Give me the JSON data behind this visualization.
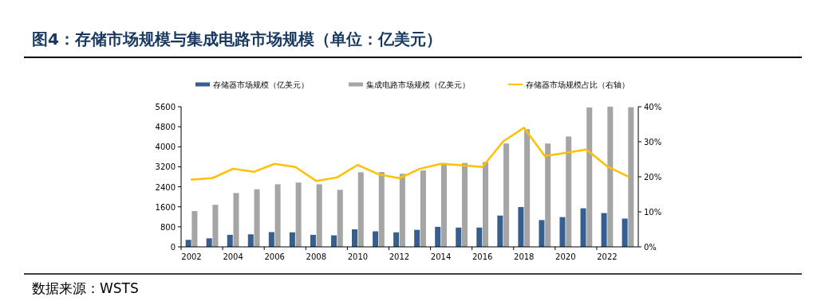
{
  "chart_data": {
    "type": "bar",
    "title": "图4：存储市场规模与集成电路市场规模（单位：亿美元）",
    "annotations": [
      "数据来源：WSTS"
    ],
    "categories": [
      "2002",
      null,
      "2004",
      null,
      "2006",
      null,
      "2008",
      null,
      "2010",
      null,
      "2012",
      null,
      "2014",
      null,
      "2016",
      null,
      "2018",
      null,
      "2020",
      null,
      "2022",
      null
    ],
    "series": [
      {
        "name": "存储器市场规模（亿美元）",
        "color": "#365f91",
        "values": [
          280,
          340,
          480,
          500,
          590,
          580,
          480,
          460,
          700,
          620,
          580,
          680,
          800,
          770,
          770,
          1250,
          1590,
          1070,
          1190,
          1540,
          1350,
          1130
        ]
      },
      {
        "name": "集成电路市场规模（亿美元）",
        "color": "#a5a5a5",
        "values": [
          1430,
          1680,
          2150,
          2300,
          2500,
          2570,
          2500,
          2280,
          2980,
          2990,
          2920,
          3050,
          3350,
          3350,
          3390,
          4130,
          4700,
          4130,
          4410,
          5570,
          5600,
          5580
        ]
      },
      {
        "name": "存储器市场规模占比（右轴）",
        "color": "#ffc000",
        "type": "line",
        "axis": "y2",
        "values": [
          19.2,
          19.6,
          22.3,
          21.4,
          23.7,
          22.8,
          18.8,
          19.8,
          23.4,
          20.7,
          19.6,
          22.3,
          23.7,
          23.3,
          22.8,
          30.1,
          34.0,
          25.9,
          26.8,
          27.8,
          23.0,
          20.1
        ]
      }
    ],
    "ylim": [
      0,
      5600
    ],
    "yticks": [
      0,
      800,
      1600,
      2400,
      3200,
      4000,
      4800,
      5600
    ],
    "y2lim": [
      0,
      40
    ],
    "y2ticks": [
      {
        "value": 0,
        "label": "0%"
      },
      {
        "value": 10,
        "label": "10%"
      },
      {
        "value": 20,
        "label": "20%"
      },
      {
        "value": 30,
        "label": "30%"
      },
      {
        "value": 40,
        "label": "40%"
      }
    ],
    "legend": "top",
    "grid": false
  }
}
